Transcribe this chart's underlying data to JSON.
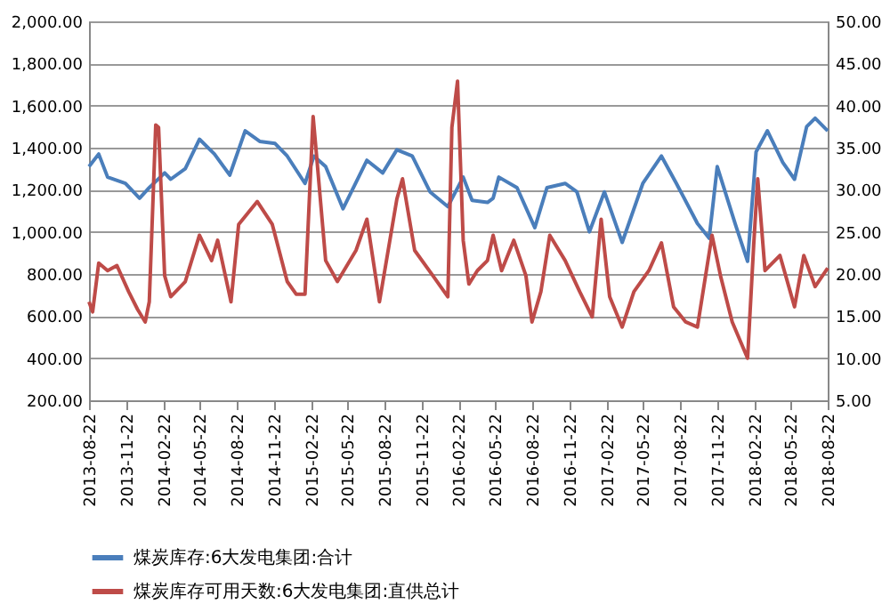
{
  "chart_data": {
    "type": "line",
    "xlim": [
      "2013-08-22",
      "2018-08-22"
    ],
    "xticks": [
      "2013-08-22",
      "2013-11-22",
      "2014-02-22",
      "2014-05-22",
      "2014-08-22",
      "2014-11-22",
      "2015-02-22",
      "2015-05-22",
      "2015-08-22",
      "2015-11-22",
      "2016-02-22",
      "2016-05-22",
      "2016-08-22",
      "2016-11-22",
      "2017-02-22",
      "2017-05-22",
      "2017-08-22",
      "2017-11-22",
      "2018-02-22",
      "2018-05-22",
      "2018-08-22"
    ],
    "ylim": [
      200,
      2000
    ],
    "yticks": [
      {
        "value": 200,
        "label": "200.00"
      },
      {
        "value": 400,
        "label": "400.00"
      },
      {
        "value": 600,
        "label": "600.00"
      },
      {
        "value": 800,
        "label": "800.00"
      },
      {
        "value": 1000,
        "label": "1,000.00"
      },
      {
        "value": 1200,
        "label": "1,200.00"
      },
      {
        "value": 1400,
        "label": "1,400.00"
      },
      {
        "value": 1600,
        "label": "1,600.00"
      },
      {
        "value": 1800,
        "label": "1,800.00"
      },
      {
        "value": 2000,
        "label": "2,000.00"
      }
    ],
    "y2lim": [
      5,
      50
    ],
    "y2ticks": [
      {
        "value": 5,
        "label": "5.00"
      },
      {
        "value": 10,
        "label": "10.00"
      },
      {
        "value": 15,
        "label": "15.00"
      },
      {
        "value": 20,
        "label": "20.00"
      },
      {
        "value": 25,
        "label": "25.00"
      },
      {
        "value": 30,
        "label": "30.00"
      },
      {
        "value": 35,
        "label": "35.00"
      },
      {
        "value": 40,
        "label": "40.00"
      },
      {
        "value": 45,
        "label": "45.00"
      },
      {
        "value": 50,
        "label": "50.00"
      }
    ],
    "grid": "y",
    "legend": "bottom",
    "marker": "none",
    "line_style": "solid",
    "series": [
      {
        "name": "煤炭库存:6大发电集团:合计",
        "color": "#4a7ebb",
        "x": [
          "2013-08-22",
          "2013-09-15",
          "2013-10-07",
          "2013-11-20",
          "2013-12-25",
          "2014-01-18",
          "2014-02-25",
          "2014-03-12",
          "2014-04-17",
          "2014-05-22",
          "2014-06-28",
          "2014-08-05",
          "2014-09-12",
          "2014-10-18",
          "2014-11-25",
          "2014-12-25",
          "2015-02-07",
          "2015-03-01",
          "2015-03-30",
          "2015-05-12",
          "2015-07-10",
          "2015-08-18",
          "2015-09-22",
          "2015-10-30",
          "2015-12-13",
          "2016-01-26",
          "2016-03-04",
          "2016-03-26",
          "2016-05-03",
          "2016-05-17",
          "2016-05-31",
          "2016-07-15",
          "2016-08-28",
          "2016-09-27",
          "2016-11-11",
          "2016-12-10",
          "2017-01-10",
          "2017-02-16",
          "2017-04-01",
          "2017-05-22",
          "2017-07-07",
          "2017-08-13",
          "2017-10-04",
          "2017-11-02",
          "2017-11-22",
          "2018-01-05",
          "2018-02-05",
          "2018-02-26",
          "2018-03-26",
          "2018-05-03",
          "2018-06-01",
          "2018-07-01",
          "2018-07-22",
          "2018-08-22"
        ],
        "values": [
          1310,
          1370,
          1260,
          1230,
          1160,
          1210,
          1280,
          1250,
          1300,
          1440,
          1370,
          1270,
          1480,
          1430,
          1420,
          1360,
          1230,
          1360,
          1310,
          1110,
          1340,
          1280,
          1390,
          1360,
          1190,
          1120,
          1260,
          1150,
          1140,
          1160,
          1260,
          1210,
          1020,
          1210,
          1230,
          1190,
          1000,
          1190,
          950,
          1230,
          1360,
          1230,
          1040,
          970,
          1310,
          1040,
          860,
          1380,
          1480,
          1330,
          1250,
          1500,
          1540,
          1480
        ]
      },
      {
        "name": "煤炭库存可用天数:6大发电集团:直供总计",
        "color": "#be4b48",
        "axis": "y2",
        "x": [
          "2013-08-22",
          "2013-08-31",
          "2013-09-15",
          "2013-10-07",
          "2013-10-30",
          "2013-11-28",
          "2013-12-20",
          "2014-01-08",
          "2014-01-18",
          "2014-02-03",
          "2014-02-10",
          "2014-02-25",
          "2014-03-12",
          "2014-04-17",
          "2014-05-22",
          "2014-06-21",
          "2014-07-06",
          "2014-08-08",
          "2014-08-27",
          "2014-10-12",
          "2014-11-18",
          "2014-12-25",
          "2015-01-16",
          "2015-02-07",
          "2015-02-27",
          "2015-03-08",
          "2015-03-30",
          "2015-04-28",
          "2015-06-13",
          "2015-07-10",
          "2015-08-10",
          "2015-09-22",
          "2015-10-06",
          "2015-11-05",
          "2015-12-20",
          "2016-01-26",
          "2016-02-05",
          "2016-02-19",
          "2016-03-04",
          "2016-03-18",
          "2016-04-08",
          "2016-05-03",
          "2016-05-17",
          "2016-06-07",
          "2016-07-07",
          "2016-08-06",
          "2016-08-21",
          "2016-09-12",
          "2016-10-04",
          "2016-11-11",
          "2016-12-17",
          "2017-01-17",
          "2017-02-08",
          "2017-03-01",
          "2017-04-01",
          "2017-04-30",
          "2017-06-06",
          "2017-07-07",
          "2017-08-06",
          "2017-09-05",
          "2017-10-04",
          "2017-11-09",
          "2017-11-30",
          "2017-12-29",
          "2018-02-05",
          "2018-02-20",
          "2018-03-02",
          "2018-03-20",
          "2018-04-26",
          "2018-06-01",
          "2018-06-24",
          "2018-07-22",
          "2018-08-22"
        ],
        "values": [
          16.7,
          15.5,
          21.3,
          20.4,
          21.0,
          17.9,
          15.8,
          14.3,
          16.7,
          37.7,
          37.4,
          19.8,
          17.3,
          19.1,
          24.6,
          21.6,
          24.0,
          16.7,
          25.9,
          28.6,
          25.9,
          19.1,
          17.6,
          17.6,
          38.7,
          33.8,
          21.6,
          19.1,
          22.8,
          26.5,
          16.7,
          28.9,
          31.3,
          22.8,
          19.8,
          17.3,
          37.4,
          42.9,
          24.0,
          18.8,
          20.4,
          21.6,
          24.6,
          20.4,
          24.0,
          19.8,
          14.3,
          17.9,
          24.6,
          21.6,
          17.9,
          14.9,
          26.5,
          17.3,
          13.7,
          17.9,
          20.4,
          23.7,
          16.1,
          14.3,
          13.7,
          24.6,
          19.8,
          14.3,
          10.0,
          23.4,
          31.3,
          20.4,
          22.2,
          16.1,
          22.2,
          18.5,
          20.7
        ]
      }
    ]
  }
}
